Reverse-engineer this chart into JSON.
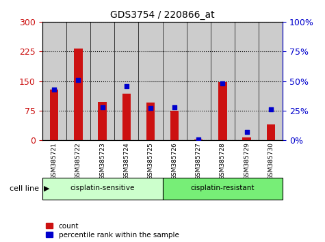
{
  "title": "GDS3754 / 220866_at",
  "samples": [
    "GSM385721",
    "GSM385722",
    "GSM385723",
    "GSM385724",
    "GSM385725",
    "GSM385726",
    "GSM385727",
    "GSM385728",
    "GSM385729",
    "GSM385730"
  ],
  "counts": [
    128,
    232,
    98,
    118,
    95,
    75,
    2,
    148,
    8,
    40
  ],
  "percentiles": [
    43,
    51,
    28,
    46,
    27,
    28,
    1,
    48,
    7,
    26
  ],
  "groups": [
    {
      "label": "cisplatin-sensitive",
      "start": 0,
      "end": 5
    },
    {
      "label": "cisplatin-resistant",
      "start": 5,
      "end": 10
    }
  ],
  "ylim_left": [
    0,
    300
  ],
  "ylim_right": [
    0,
    100
  ],
  "yticks_left": [
    0,
    75,
    150,
    225,
    300
  ],
  "yticks_right": [
    0,
    25,
    50,
    75,
    100
  ],
  "bar_color": "#cc1111",
  "dot_color": "#0000cc",
  "col_bg_color": "#cccccc",
  "group_colors": [
    "#ccffcc",
    "#77ee77"
  ],
  "left_axis_color": "#cc1111",
  "right_axis_color": "#0000cc",
  "legend_count": "count",
  "legend_percentile": "percentile rank within the sample",
  "cell_line_label": "cell line"
}
